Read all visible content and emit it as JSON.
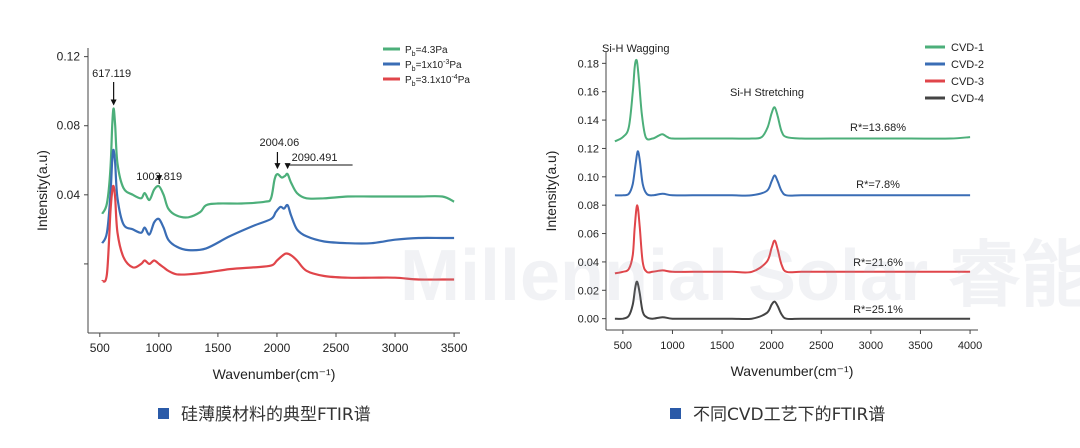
{
  "charts": [
    {
      "type": "line",
      "title": "",
      "xlabel": "Wavenumber(cm⁻¹)",
      "ylabel": "Intensity(a.u)",
      "xlim": [
        400,
        3550
      ],
      "ylim": [
        -0.04,
        0.125
      ],
      "xticks": [
        "500",
        "1000",
        "1500",
        "2000",
        "2500",
        "3000",
        "3500"
      ],
      "xtick_values": [
        500,
        1000,
        1500,
        2000,
        2500,
        3000,
        3500
      ],
      "yticks": [
        "0.12",
        "0.08",
        "0.04"
      ],
      "ytick_values": [
        0.12,
        0.08,
        0.04
      ],
      "minor_ytick_values": [
        0
      ],
      "legend": [
        "Pb=4.3Pa",
        "Pb=1x10⁻³Pa",
        "Pb=3.1x10⁻⁴Pa"
      ],
      "legend_position": "top-right",
      "series": [
        {
          "name": "Pb=4.3Pa",
          "color": "#4caf7a",
          "x": [
            520,
            560,
            590,
            605,
            617,
            630,
            650,
            700,
            780,
            850,
            880,
            920,
            960,
            1000,
            1040,
            1080,
            1150,
            1250,
            1350,
            1400,
            1500,
            1700,
            1900,
            1950,
            1980,
            2004,
            2040,
            2070,
            2090,
            2120,
            2170,
            2250,
            2400,
            2600,
            2800,
            3000,
            3200,
            3400,
            3500
          ],
          "y": [
            0.029,
            0.035,
            0.055,
            0.08,
            0.09,
            0.08,
            0.058,
            0.044,
            0.04,
            0.038,
            0.041,
            0.037,
            0.043,
            0.045,
            0.04,
            0.032,
            0.028,
            0.027,
            0.03,
            0.034,
            0.035,
            0.035,
            0.036,
            0.038,
            0.049,
            0.052,
            0.05,
            0.051,
            0.052,
            0.047,
            0.041,
            0.038,
            0.038,
            0.039,
            0.039,
            0.039,
            0.039,
            0.039,
            0.036
          ]
        },
        {
          "name": "Pb=1x10⁻³Pa",
          "color": "#3a6db5",
          "x": [
            520,
            560,
            590,
            605,
            617,
            630,
            650,
            700,
            780,
            850,
            880,
            920,
            960,
            1000,
            1040,
            1080,
            1150,
            1250,
            1400,
            1600,
            1800,
            1950,
            1990,
            2030,
            2060,
            2090,
            2120,
            2170,
            2250,
            2400,
            2600,
            2800,
            3000,
            3200,
            3400,
            3500
          ],
          "y": [
            0.012,
            0.018,
            0.04,
            0.06,
            0.066,
            0.058,
            0.038,
            0.023,
            0.02,
            0.018,
            0.021,
            0.017,
            0.024,
            0.026,
            0.021,
            0.014,
            0.01,
            0.008,
            0.009,
            0.016,
            0.022,
            0.026,
            0.03,
            0.033,
            0.032,
            0.034,
            0.028,
            0.02,
            0.016,
            0.013,
            0.012,
            0.012,
            0.014,
            0.015,
            0.015,
            0.015
          ]
        },
        {
          "name": "Pb=3.1x10⁻⁴Pa",
          "color": "#e0454a",
          "x": [
            520,
            560,
            590,
            605,
            617,
            630,
            650,
            700,
            780,
            850,
            880,
            920,
            960,
            1000,
            1040,
            1080,
            1150,
            1250,
            1400,
            1600,
            1800,
            1950,
            2000,
            2050,
            2080,
            2120,
            2170,
            2250,
            2400,
            2600,
            2800,
            3000,
            3200,
            3400,
            3500
          ],
          "y": [
            -0.01,
            -0.006,
            0.03,
            0.042,
            0.045,
            0.038,
            0.018,
            0.004,
            -0.002,
            0.0,
            0.002,
            0.0,
            0.002,
            0.0,
            -0.002,
            -0.004,
            -0.006,
            -0.006,
            -0.005,
            -0.003,
            -0.002,
            -0.001,
            0.002,
            0.005,
            0.006,
            0.005,
            0.002,
            -0.004,
            -0.007,
            -0.008,
            -0.008,
            -0.008,
            -0.009,
            -0.009,
            -0.009
          ]
        }
      ],
      "annotations": [
        {
          "text": "617.119",
          "x": 617,
          "y": 0.09
        },
        {
          "text": "1002.819",
          "x": 1003,
          "y": 0.045
        },
        {
          "text": "2004.06",
          "x": 2004,
          "y": 0.052
        },
        {
          "text": "2090.491",
          "x": 2090,
          "y": 0.052
        }
      ]
    },
    {
      "type": "line",
      "title": "",
      "xlabel": "Wavenumber(cm⁻¹)",
      "ylabel": "Intensity(a.u)",
      "xlim": [
        330,
        4080
      ],
      "ylim": [
        -0.008,
        0.188
      ],
      "xticks": [
        "500",
        "1000",
        "1500",
        "2000",
        "2500",
        "3000",
        "3500",
        "4000"
      ],
      "xtick_values": [
        500,
        1000,
        1500,
        2000,
        2500,
        3000,
        3500,
        4000
      ],
      "yticks": [
        "0.00",
        "0.02",
        "0.04",
        "0.06",
        "0.08",
        "0.10",
        "0.12",
        "0.14",
        "0.16",
        "0.18"
      ],
      "ytick_values": [
        0,
        0.02,
        0.04,
        0.06,
        0.08,
        0.1,
        0.12,
        0.14,
        0.16,
        0.18
      ],
      "legend": [
        "CVD-1",
        "CVD-2",
        "CVD-3",
        "CVD-4"
      ],
      "legend_position": "top-right",
      "peak_labels": [
        "Si-H Wagging",
        "Si-H Stretching"
      ],
      "series": [
        {
          "name": "CVD-1",
          "color": "#4caf7a",
          "x": [
            420,
            500,
            560,
            600,
            620,
            640,
            660,
            690,
            730,
            800,
            860,
            900,
            950,
            1000,
            1200,
            1400,
            1600,
            1800,
            1900,
            1960,
            2000,
            2030,
            2060,
            2100,
            2150,
            2300,
            2600,
            3000,
            3400,
            3800,
            4000
          ],
          "y": [
            0.125,
            0.128,
            0.135,
            0.16,
            0.178,
            0.182,
            0.17,
            0.145,
            0.128,
            0.127,
            0.129,
            0.13,
            0.128,
            0.127,
            0.127,
            0.127,
            0.127,
            0.127,
            0.128,
            0.135,
            0.145,
            0.149,
            0.143,
            0.132,
            0.128,
            0.127,
            0.127,
            0.127,
            0.127,
            0.127,
            0.128
          ]
        },
        {
          "name": "CVD-2",
          "color": "#3a6db5",
          "x": [
            420,
            500,
            560,
            600,
            630,
            650,
            670,
            700,
            740,
            800,
            900,
            1000,
            1200,
            1400,
            1600,
            1800,
            1950,
            2000,
            2030,
            2060,
            2100,
            2150,
            2300,
            2600,
            3000,
            3400,
            3800,
            4000
          ],
          "y": [
            0.087,
            0.087,
            0.088,
            0.095,
            0.11,
            0.118,
            0.112,
            0.095,
            0.088,
            0.087,
            0.088,
            0.087,
            0.087,
            0.087,
            0.087,
            0.087,
            0.09,
            0.097,
            0.101,
            0.097,
            0.09,
            0.087,
            0.087,
            0.087,
            0.087,
            0.087,
            0.087,
            0.087
          ]
        },
        {
          "name": "CVD-3",
          "color": "#e0454a",
          "x": [
            420,
            500,
            560,
            600,
            620,
            645,
            670,
            700,
            740,
            800,
            900,
            1000,
            1200,
            1400,
            1600,
            1800,
            1950,
            2000,
            2030,
            2060,
            2100,
            2150,
            2300,
            2600,
            3000,
            3400,
            3800,
            4000
          ],
          "y": [
            0.032,
            0.033,
            0.035,
            0.045,
            0.065,
            0.08,
            0.065,
            0.04,
            0.033,
            0.033,
            0.034,
            0.033,
            0.033,
            0.033,
            0.033,
            0.033,
            0.04,
            0.05,
            0.055,
            0.049,
            0.038,
            0.033,
            0.033,
            0.033,
            0.033,
            0.033,
            0.033,
            0.033
          ]
        },
        {
          "name": "CVD-4",
          "color": "#444444",
          "x": [
            420,
            500,
            560,
            600,
            625,
            645,
            670,
            700,
            740,
            800,
            900,
            1000,
            1200,
            1400,
            1600,
            1800,
            1950,
            2000,
            2030,
            2060,
            2100,
            2150,
            2300,
            2600,
            3000,
            3400,
            3800,
            4000
          ],
          "y": [
            0.0,
            0.0,
            0.002,
            0.01,
            0.022,
            0.026,
            0.018,
            0.005,
            0.001,
            0.0,
            0.001,
            0.0,
            0.0,
            0.0,
            0.0,
            0.0,
            0.004,
            0.01,
            0.012,
            0.009,
            0.003,
            0.0,
            0.0,
            0.0,
            0.0,
            0.0,
            0.0,
            0.0
          ]
        }
      ],
      "annotations": [
        {
          "text": "R*=13.68%",
          "x": 3000,
          "y": 0.13
        },
        {
          "text": "R*=7.8%",
          "x": 3000,
          "y": 0.091
        },
        {
          "text": "R*=21.6%",
          "x": 3000,
          "y": 0.036
        },
        {
          "text": "R*=25.1%",
          "x": 3000,
          "y": 0.004
        }
      ]
    }
  ],
  "chart_data": [
    {
      "type": "line",
      "xlabel": "Wavenumber(cm⁻¹)",
      "ylabel": "Intensity(a.u)",
      "series": [
        {
          "name": "Pb=4.3Pa",
          "peaks_x": [
            617.119,
            1002.819,
            2004.06,
            2090.491
          ]
        },
        {
          "name": "Pb=1x10⁻³Pa"
        },
        {
          "name": "Pb=3.1x10⁻⁴Pa"
        }
      ]
    },
    {
      "type": "line",
      "xlabel": "Wavenumber(cm⁻¹)",
      "ylabel": "Intensity(a.u)",
      "series": [
        {
          "name": "CVD-1",
          "R": "13.68%"
        },
        {
          "name": "CVD-2",
          "R": "7.8%"
        },
        {
          "name": "CVD-3",
          "R": "21.6%"
        },
        {
          "name": "CVD-4",
          "R": "25.1%"
        }
      ]
    }
  ],
  "captions": {
    "left": "硅薄膜材料的典型FTIR谱",
    "right": "不同CVD工艺下的FTIR谱"
  },
  "watermark": "Millennial Solar 睿能光伏",
  "colors": {
    "caption_square": "#2a5aa8",
    "axis": "#444444"
  }
}
